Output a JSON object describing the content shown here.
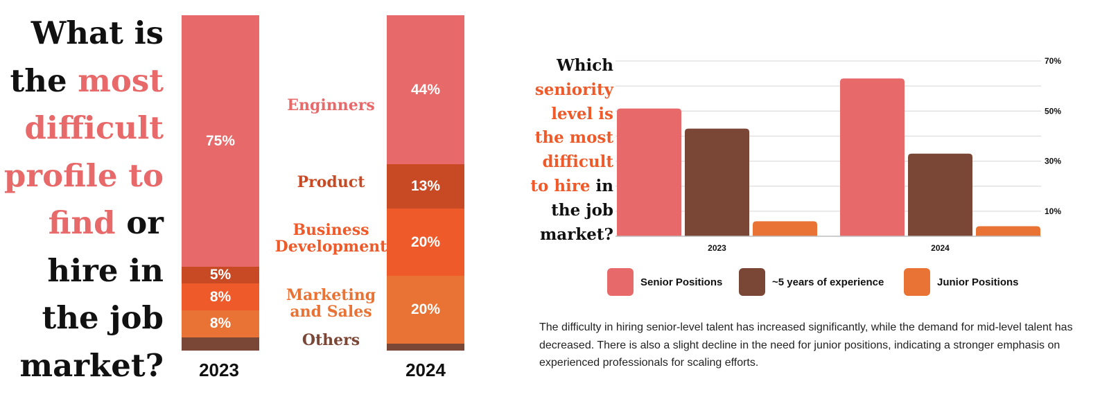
{
  "left_chart": {
    "title_lines": [
      [
        {
          "text": "What is",
          "accent": false
        }
      ],
      [
        {
          "text": "the ",
          "accent": false
        },
        {
          "text": "most",
          "accent": true
        }
      ],
      [
        {
          "text": "difficult",
          "accent": true
        }
      ],
      [
        {
          "text": "profile to",
          "accent": true
        }
      ],
      [
        {
          "text": "find",
          "accent": true
        },
        {
          "text": " or",
          "accent": false
        }
      ],
      [
        {
          "text": "hire in",
          "accent": false
        }
      ],
      [
        {
          "text": "the job",
          "accent": false
        }
      ],
      [
        {
          "text": "market?",
          "accent": false
        }
      ]
    ],
    "categories": [
      {
        "name": "Enginners",
        "color": "#e8696a"
      },
      {
        "name": "Product",
        "color": "#c84a24"
      },
      {
        "name": "Business Development",
        "color": "#ee5a2a"
      },
      {
        "name": "Marketing and Sales",
        "color": "#e87335"
      },
      {
        "name": "Others",
        "color": "#7a4636"
      }
    ],
    "bars": [
      {
        "year": "2023",
        "values": [
          75,
          5,
          8,
          8,
          4
        ],
        "labels": [
          "75%",
          "5%",
          "8%",
          "8%",
          ""
        ]
      },
      {
        "year": "2024",
        "values": [
          44,
          13,
          20,
          20,
          2
        ],
        "labels": [
          "44%",
          "13%",
          "20%",
          "20%",
          ""
        ]
      }
    ]
  },
  "chart_data": {
    "type": "bar",
    "categories": [
      "2023",
      "2024"
    ],
    "series": [
      {
        "name": "Senior Positions",
        "color": "#e8696a",
        "values": [
          51,
          63
        ]
      },
      {
        "name": "~5 years of experience",
        "color": "#7a4636",
        "values": [
          43,
          33
        ]
      },
      {
        "name": "Junior Positions",
        "color": "#e87335",
        "values": [
          6,
          4
        ]
      }
    ],
    "ylim": [
      0,
      70
    ],
    "yticks": [
      "70%",
      "50%",
      "30%",
      "10%"
    ],
    "ytick_values": [
      70,
      50,
      30,
      10
    ],
    "grid": true,
    "legend": "bottom",
    "title_lines": [
      [
        {
          "text": "Which",
          "accent": false
        }
      ],
      [
        {
          "text": "seniority",
          "accent": true
        }
      ],
      [
        {
          "text": "level is",
          "accent": true
        }
      ],
      [
        {
          "text": "the most",
          "accent": true
        }
      ],
      [
        {
          "text": "difficult",
          "accent": true
        }
      ],
      [
        {
          "text": "to hire",
          "accent": true
        },
        {
          "text": " in",
          "accent": false
        }
      ],
      [
        {
          "text": "the job",
          "accent": false
        }
      ],
      [
        {
          "text": "market?",
          "accent": false
        }
      ]
    ]
  },
  "description": "The difficulty in hiring senior-level talent has increased significantly, while the demand for mid-level talent has decreased. There is also a slight decline in the need for junior positions, indicating a stronger emphasis on experienced professionals for scaling efforts."
}
